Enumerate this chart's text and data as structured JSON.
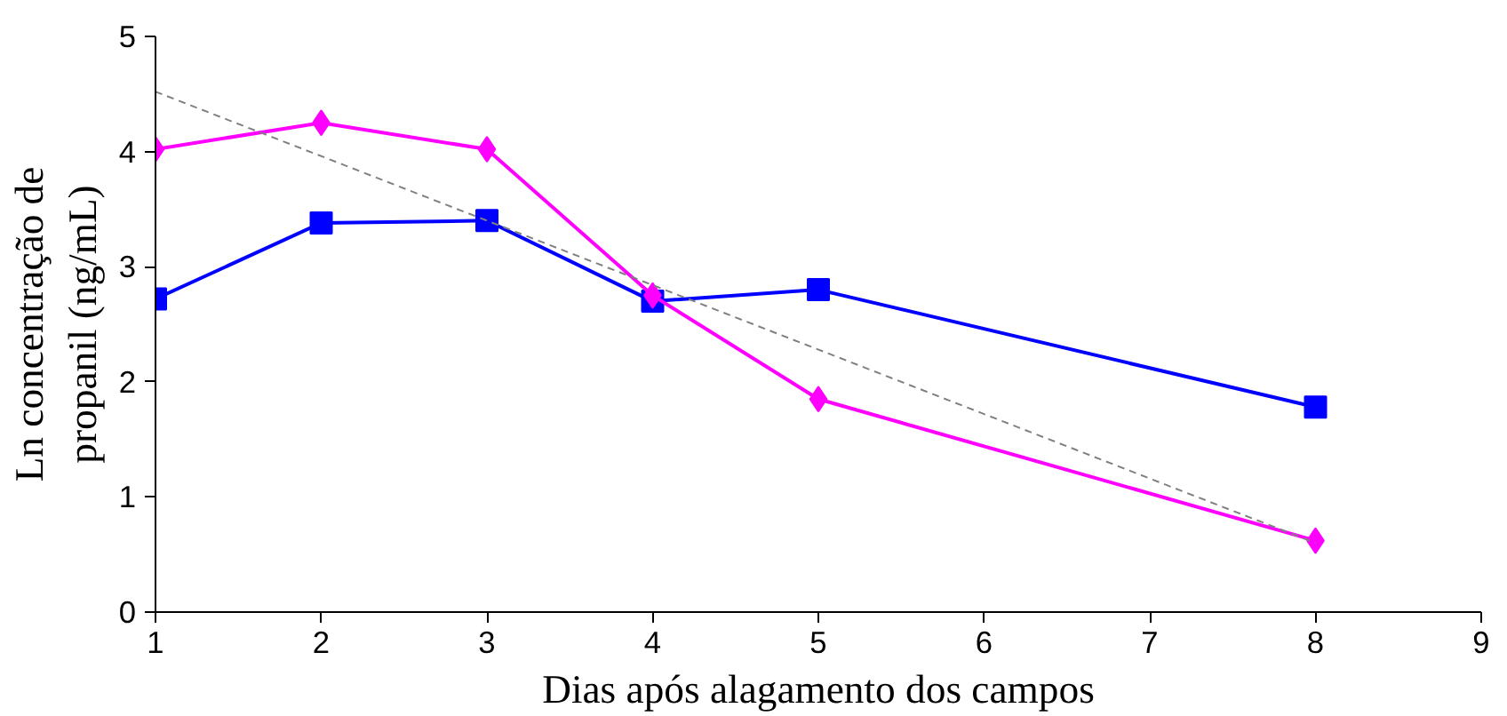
{
  "chart_data": {
    "type": "line",
    "xlabel": "Dias após alagamento dos campos",
    "ylabel": "Ln concentração de\npropanil (ng/mL)",
    "x": [
      1,
      2,
      3,
      4,
      5,
      8
    ],
    "series": [
      {
        "color": "#0000ff",
        "marker": "square",
        "values": [
          2.72,
          3.38,
          3.4,
          2.7,
          2.8,
          1.78
        ]
      },
      {
        "color": "#ff00ff",
        "marker": "diamond",
        "values": [
          4.02,
          4.25,
          4.02,
          2.75,
          1.85,
          0.62
        ]
      },
      {
        "type": "line",
        "x": [
          1,
          8
        ],
        "color": "#808080",
        "marker": "none",
        "line_style": "dashed",
        "values": [
          4.52,
          0.6
        ]
      }
    ],
    "xlim": [
      1,
      9
    ],
    "ylim": [
      0,
      5
    ],
    "xticks": [
      1,
      2,
      3,
      4,
      5,
      6,
      7,
      8,
      9
    ],
    "yticks": [
      0,
      1,
      2,
      3,
      4,
      5
    ],
    "grid": false,
    "line_style": "solid"
  }
}
